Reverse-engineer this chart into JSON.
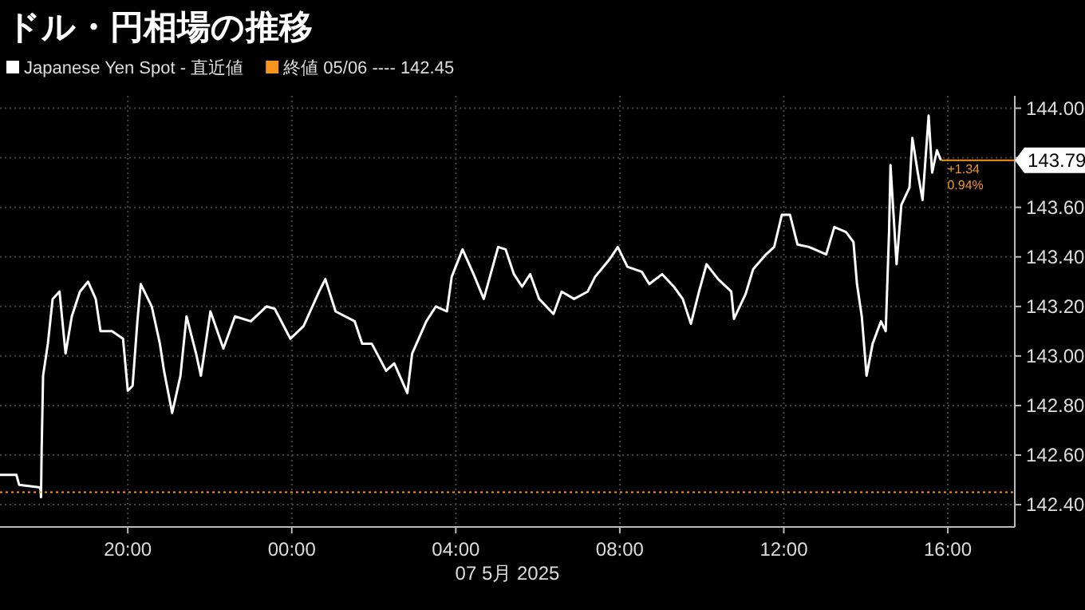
{
  "chart_data": {
    "type": "line",
    "title": "ドル・円相場の推移",
    "xlabel": "07 5月 2025",
    "xlim": [
      "2025-05-06T16:53",
      "2025-05-07T17:38"
    ],
    "ylim": [
      142.31,
      144.05
    ],
    "xticks": [
      {
        "value": "2025-05-06T20:00",
        "label": "20:00"
      },
      {
        "value": "2025-05-07T00:00",
        "label": "00:00"
      },
      {
        "value": "2025-05-07T04:00",
        "label": "04:00"
      },
      {
        "value": "2025-05-07T08:00",
        "label": "08:00"
      },
      {
        "value": "2025-05-07T12:00",
        "label": "12:00"
      },
      {
        "value": "2025-05-07T16:00",
        "label": "16:00"
      }
    ],
    "yticks": [
      {
        "value": 142.4,
        "label": "142.40"
      },
      {
        "value": 142.6,
        "label": "142.60"
      },
      {
        "value": 142.8,
        "label": "142.80"
      },
      {
        "value": 143.0,
        "label": "143.00"
      },
      {
        "value": 143.2,
        "label": "143.20"
      },
      {
        "value": 143.4,
        "label": "143.40"
      },
      {
        "value": 143.6,
        "label": "143.60"
      },
      {
        "value": 143.8,
        "label": null
      },
      {
        "value": 144.0,
        "label": "144.00"
      }
    ],
    "grid": true,
    "legend": "top left",
    "series": [
      {
        "name": "Japanese Yen Spot - 直近値",
        "color": "#ffffff",
        "x": [
          "2025-05-06T16:53",
          "2025-05-06T17:17",
          "2025-05-06T17:21",
          "2025-05-06T17:52",
          "2025-05-06T17:53",
          "2025-05-06T17:54",
          "2025-05-06T17:56",
          "2025-05-06T18:03",
          "2025-05-06T18:10",
          "2025-05-06T18:20",
          "2025-05-06T18:29",
          "2025-05-06T18:38",
          "2025-05-06T18:50",
          "2025-05-06T19:02",
          "2025-05-06T19:13",
          "2025-05-06T19:20",
          "2025-05-06T19:37",
          "2025-05-06T19:53",
          "2025-05-06T20:00",
          "2025-05-06T20:07",
          "2025-05-06T20:14",
          "2025-05-06T20:19",
          "2025-05-06T20:35",
          "2025-05-06T20:47",
          "2025-05-06T20:53",
          "2025-05-06T21:05",
          "2025-05-06T21:17",
          "2025-05-06T21:26",
          "2025-05-06T21:40",
          "2025-05-06T21:47",
          "2025-05-06T22:01",
          "2025-05-06T22:20",
          "2025-05-06T22:37",
          "2025-05-06T23:00",
          "2025-05-06T23:23",
          "2025-05-06T23:35",
          "2025-05-06T23:58",
          "2025-05-07T00:17",
          "2025-05-07T00:40",
          "2025-05-07T00:49",
          "2025-05-07T01:04",
          "2025-05-07T01:32",
          "2025-05-07T01:43",
          "2025-05-07T01:57",
          "2025-05-07T02:18",
          "2025-05-07T02:30",
          "2025-05-07T02:49",
          "2025-05-07T02:56",
          "2025-05-07T03:17",
          "2025-05-07T03:31",
          "2025-05-07T03:47",
          "2025-05-07T03:54",
          "2025-05-07T04:10",
          "2025-05-07T04:26",
          "2025-05-07T04:41",
          "2025-05-07T05:02",
          "2025-05-07T05:13",
          "2025-05-07T05:25",
          "2025-05-07T05:37",
          "2025-05-07T05:49",
          "2025-05-07T06:02",
          "2025-05-07T06:23",
          "2025-05-07T06:35",
          "2025-05-07T06:53",
          "2025-05-07T07:13",
          "2025-05-07T07:24",
          "2025-05-07T07:45",
          "2025-05-07T07:57",
          "2025-05-07T08:11",
          "2025-05-07T08:32",
          "2025-05-07T08:43",
          "2025-05-07T09:02",
          "2025-05-07T09:19",
          "2025-05-07T09:32",
          "2025-05-07T09:44",
          "2025-05-07T09:56",
          "2025-05-07T10:07",
          "2025-05-07T10:24",
          "2025-05-07T10:43",
          "2025-05-07T10:47",
          "2025-05-07T11:04",
          "2025-05-07T11:15",
          "2025-05-07T11:34",
          "2025-05-07T11:46",
          "2025-05-07T11:57",
          "2025-05-07T12:09",
          "2025-05-07T12:20",
          "2025-05-07T12:37",
          "2025-05-07T13:02",
          "2025-05-07T13:14",
          "2025-05-07T13:31",
          "2025-05-07T13:42",
          "2025-05-07T13:47",
          "2025-05-07T13:54",
          "2025-05-07T14:01",
          "2025-05-07T14:10",
          "2025-05-07T14:22",
          "2025-05-07T14:29",
          "2025-05-07T14:34",
          "2025-05-07T14:36",
          "2025-05-07T14:45",
          "2025-05-07T14:52",
          "2025-05-07T15:04",
          "2025-05-07T15:08",
          "2025-05-07T15:16",
          "2025-05-07T15:23",
          "2025-05-07T15:32",
          "2025-05-07T15:37",
          "2025-05-07T15:44",
          "2025-05-07T15:50"
        ],
        "values": [
          142.52,
          142.52,
          142.48,
          142.47,
          142.43,
          142.62,
          142.92,
          143.05,
          143.23,
          143.26,
          143.01,
          143.16,
          143.26,
          143.3,
          143.23,
          143.1,
          143.1,
          143.07,
          142.86,
          142.88,
          143.14,
          143.29,
          143.2,
          143.05,
          142.94,
          142.77,
          142.92,
          143.16,
          143.01,
          142.92,
          143.18,
          143.03,
          143.16,
          143.14,
          143.2,
          143.19,
          143.07,
          143.12,
          143.26,
          143.31,
          143.18,
          143.14,
          143.05,
          143.05,
          142.94,
          142.97,
          142.85,
          143.01,
          143.14,
          143.2,
          143.18,
          143.32,
          143.43,
          143.33,
          143.23,
          143.44,
          143.43,
          143.33,
          143.28,
          143.33,
          143.23,
          143.17,
          143.26,
          143.23,
          143.26,
          143.32,
          143.39,
          143.44,
          143.36,
          143.34,
          143.29,
          143.33,
          143.28,
          143.23,
          143.13,
          143.26,
          143.37,
          143.31,
          143.26,
          143.15,
          143.25,
          143.35,
          143.41,
          143.44,
          143.57,
          143.57,
          143.45,
          143.44,
          143.41,
          143.52,
          143.5,
          143.46,
          143.29,
          143.16,
          142.92,
          143.05,
          143.14,
          143.1,
          143.5,
          143.77,
          143.37,
          143.61,
          143.68,
          143.88,
          143.74,
          143.63,
          143.97,
          143.74,
          143.83,
          143.79
        ]
      }
    ],
    "ref_lines": [
      {
        "axis": "y",
        "value": 142.45,
        "label": "終値 05/06 ---- 142.45",
        "color": "#f7941d",
        "line_style": "dotted"
      },
      {
        "axis": "y",
        "value": 143.79,
        "label": "143.79",
        "color": "#f7941d",
        "line_style": "solid"
      }
    ],
    "annotations": [
      "+1.34",
      "0.94%"
    ]
  }
}
